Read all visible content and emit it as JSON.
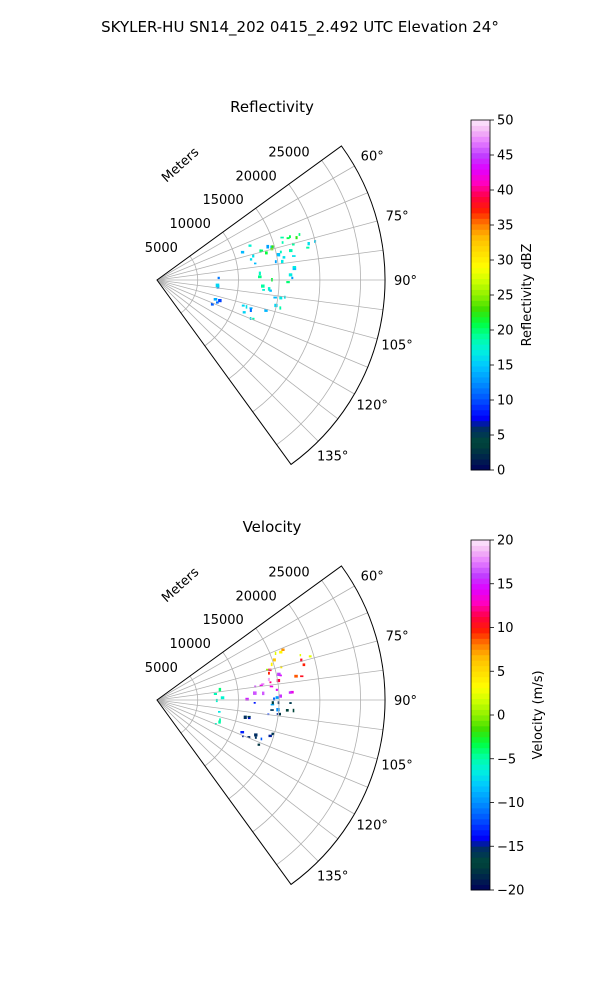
{
  "figure_title": "SKYLER-HU  SN14_202  0415_2.492 UTC Elevation 24°",
  "chart_data": [
    {
      "type": "heatmap",
      "projection": "polar-sector",
      "title": "Reflectivity",
      "radial_label": "Meters",
      "radial_ticks": [
        5000,
        10000,
        15000,
        20000,
        25000
      ],
      "radial_tick_labels": [
        "5000",
        "10000",
        "15000",
        "20000",
        "25000"
      ],
      "r_max": 28000,
      "theta_range_deg": [
        54,
        144
      ],
      "theta_ticks": [
        60,
        75,
        90,
        105,
        120,
        135
      ],
      "theta_tick_labels": [
        "60°",
        "75°",
        "90°",
        "105°",
        "120°",
        "135°"
      ],
      "grid": true,
      "colorbar": {
        "label": "Reflectivity dBZ",
        "min": 0,
        "max": 50,
        "ticks": [
          0,
          5,
          10,
          15,
          20,
          25,
          30,
          35,
          40,
          45,
          50
        ],
        "tick_labels": [
          "0",
          "5",
          "10",
          "15",
          "20",
          "25",
          "30",
          "35",
          "40",
          "45",
          "50"
        ],
        "stops": [
          [
            0,
            "#00005a"
          ],
          [
            0.04,
            "#00284a"
          ],
          [
            0.08,
            "#004838"
          ],
          [
            0.12,
            "#002c66"
          ],
          [
            0.15,
            "#0000ff"
          ],
          [
            0.2,
            "#0050ff"
          ],
          [
            0.25,
            "#0090ff"
          ],
          [
            0.3,
            "#00c8ff"
          ],
          [
            0.34,
            "#00f0e0"
          ],
          [
            0.38,
            "#00ffa0"
          ],
          [
            0.42,
            "#00ff40"
          ],
          [
            0.46,
            "#40e000"
          ],
          [
            0.5,
            "#90f000"
          ],
          [
            0.54,
            "#ccff00"
          ],
          [
            0.58,
            "#ffff00"
          ],
          [
            0.62,
            "#ffe000"
          ],
          [
            0.66,
            "#ffc000"
          ],
          [
            0.7,
            "#ff8000"
          ],
          [
            0.74,
            "#ff2000"
          ],
          [
            0.78,
            "#ff0040"
          ],
          [
            0.82,
            "#ff00c0"
          ],
          [
            0.86,
            "#e000ff"
          ],
          [
            0.9,
            "#c040ff"
          ],
          [
            0.94,
            "#e880ff"
          ],
          [
            0.97,
            "#f4b8f4"
          ],
          [
            1,
            "#fce8fc"
          ]
        ]
      },
      "echo_clusters": [
        {
          "r_range": [
            11000,
            20000
          ],
          "theta_range": [
            68,
            82
          ],
          "value": 17,
          "spread": 4
        },
        {
          "r_range": [
            12000,
            18000
          ],
          "theta_range": [
            72,
            77
          ],
          "value": 21,
          "spread": 4
        },
        {
          "r_range": [
            12500,
            17500
          ],
          "theta_range": [
            83,
            91
          ],
          "value": 18,
          "spread": 4
        },
        {
          "r_range": [
            13000,
            16500
          ],
          "theta_range": [
            92,
            105
          ],
          "value": 16,
          "spread": 3
        },
        {
          "r_range": [
            11000,
            15000
          ],
          "theta_range": [
            105,
            116
          ],
          "value": 15,
          "spread": 3
        },
        {
          "r_range": [
            7000,
            8200
          ],
          "theta_range": [
            80,
            115
          ],
          "value": 13,
          "spread": 3
        }
      ]
    },
    {
      "type": "heatmap",
      "projection": "polar-sector",
      "title": "Velocity",
      "radial_label": "Meters",
      "radial_ticks": [
        5000,
        10000,
        15000,
        20000,
        25000
      ],
      "radial_tick_labels": [
        "5000",
        "10000",
        "15000",
        "20000",
        "25000"
      ],
      "r_max": 28000,
      "theta_range_deg": [
        54,
        144
      ],
      "theta_ticks": [
        60,
        75,
        90,
        105,
        120,
        135
      ],
      "theta_tick_labels": [
        "60°",
        "75°",
        "90°",
        "105°",
        "120°",
        "135°"
      ],
      "grid": true,
      "colorbar": {
        "label": "Velocity (m/s)",
        "min": -20,
        "max": 20,
        "ticks": [
          -20,
          -15,
          -10,
          -5,
          0,
          5,
          10,
          15,
          20
        ],
        "tick_labels": [
          "−20",
          "−15",
          "−10",
          "−5",
          "0",
          "5",
          "10",
          "15",
          "20"
        ],
        "stops": [
          [
            0,
            "#00005a"
          ],
          [
            0.04,
            "#00284a"
          ],
          [
            0.08,
            "#004838"
          ],
          [
            0.12,
            "#002c66"
          ],
          [
            0.15,
            "#0000ff"
          ],
          [
            0.2,
            "#0050ff"
          ],
          [
            0.25,
            "#0090ff"
          ],
          [
            0.3,
            "#00c8ff"
          ],
          [
            0.34,
            "#00f0e0"
          ],
          [
            0.38,
            "#00ffa0"
          ],
          [
            0.42,
            "#00ff40"
          ],
          [
            0.46,
            "#40e000"
          ],
          [
            0.5,
            "#90f000"
          ],
          [
            0.54,
            "#ccff00"
          ],
          [
            0.58,
            "#ffff00"
          ],
          [
            0.62,
            "#ffe000"
          ],
          [
            0.66,
            "#ffc000"
          ],
          [
            0.7,
            "#ff8000"
          ],
          [
            0.74,
            "#ff2000"
          ],
          [
            0.78,
            "#ff0040"
          ],
          [
            0.82,
            "#ff00c0"
          ],
          [
            0.86,
            "#e000ff"
          ],
          [
            0.9,
            "#c040ff"
          ],
          [
            0.94,
            "#e880ff"
          ],
          [
            0.97,
            "#f4b8f4"
          ],
          [
            1,
            "#fce8fc"
          ]
        ]
      },
      "echo_clusters": [
        {
          "r_range": [
            14000,
            20000
          ],
          "theta_range": [
            68,
            76
          ],
          "value": 4,
          "spread": 4
        },
        {
          "r_range": [
            14000,
            19000
          ],
          "theta_range": [
            74,
            82
          ],
          "value": 10,
          "spread": 3
        },
        {
          "r_range": [
            11000,
            17000
          ],
          "theta_range": [
            78,
            90
          ],
          "value": 15,
          "spread": 3
        },
        {
          "r_range": [
            12000,
            15000
          ],
          "theta_range": [
            86,
            98
          ],
          "value": -12,
          "spread": 3
        },
        {
          "r_range": [
            14000,
            17000
          ],
          "theta_range": [
            88,
            100
          ],
          "value": -16,
          "spread": 2
        },
        {
          "r_range": [
            11000,
            15000
          ],
          "theta_range": [
            100,
            116
          ],
          "value": -14,
          "spread": 3
        },
        {
          "r_range": [
            7000,
            8200
          ],
          "theta_range": [
            80,
            115
          ],
          "value": -5,
          "spread": 1.5
        }
      ]
    }
  ]
}
